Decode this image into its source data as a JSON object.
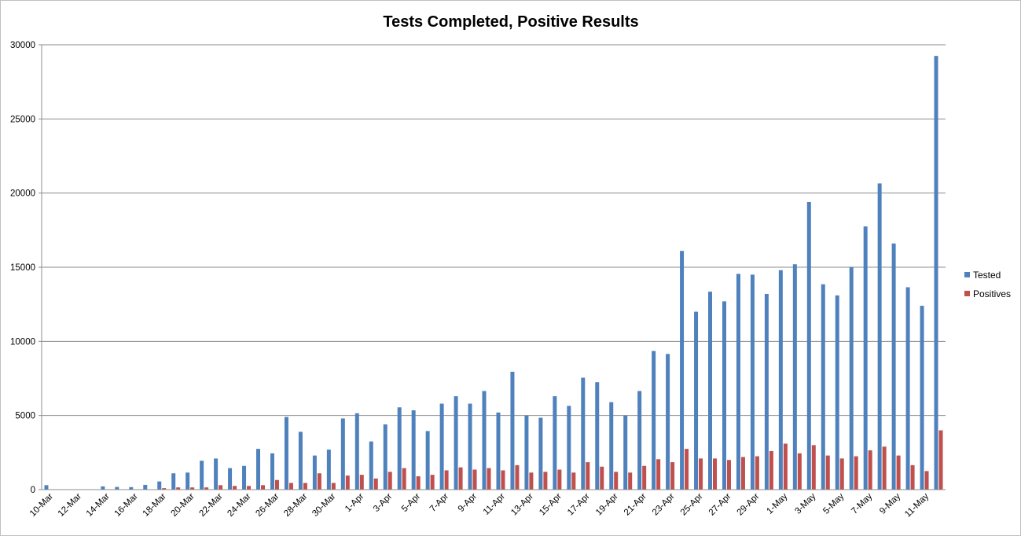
{
  "chart_data": {
    "type": "bar",
    "title": "Tests Completed, Positive Results",
    "xlabel": "",
    "ylabel": "",
    "ylim": [
      0,
      30000
    ],
    "y_ticks": [
      0,
      5000,
      10000,
      15000,
      20000,
      25000,
      30000
    ],
    "grid": "horizontal",
    "legend_position": "right",
    "categories": [
      "10-Mar",
      "11-Mar",
      "12-Mar",
      "13-Mar",
      "14-Mar",
      "15-Mar",
      "16-Mar",
      "17-Mar",
      "18-Mar",
      "19-Mar",
      "20-Mar",
      "21-Mar",
      "22-Mar",
      "23-Mar",
      "24-Mar",
      "25-Mar",
      "26-Mar",
      "27-Mar",
      "28-Mar",
      "29-Mar",
      "30-Mar",
      "31-Mar",
      "1-Apr",
      "2-Apr",
      "3-Apr",
      "4-Apr",
      "5-Apr",
      "6-Apr",
      "7-Apr",
      "8-Apr",
      "9-Apr",
      "10-Apr",
      "11-Apr",
      "12-Apr",
      "13-Apr",
      "14-Apr",
      "15-Apr",
      "16-Apr",
      "17-Apr",
      "18-Apr",
      "19-Apr",
      "20-Apr",
      "21-Apr",
      "22-Apr",
      "23-Apr",
      "24-Apr",
      "25-Apr",
      "26-Apr",
      "27-Apr",
      "28-Apr",
      "29-Apr",
      "30-Apr",
      "1-May",
      "2-May",
      "3-May",
      "4-May",
      "5-May",
      "6-May",
      "7-May",
      "8-May",
      "9-May",
      "10-May",
      "11-May",
      "12-May"
    ],
    "tick_labels": [
      "10-Mar",
      "",
      "12-Mar",
      "",
      "14-Mar",
      "",
      "16-Mar",
      "",
      "18-Mar",
      "",
      "20-Mar",
      "",
      "22-Mar",
      "",
      "24-Mar",
      "",
      "26-Mar",
      "",
      "28-Mar",
      "",
      "30-Mar",
      "",
      "1-Apr",
      "",
      "3-Apr",
      "",
      "5-Apr",
      "",
      "7-Apr",
      "",
      "9-Apr",
      "",
      "11-Apr",
      "",
      "13-Apr",
      "",
      "15-Apr",
      "",
      "17-Apr",
      "",
      "19-Apr",
      "",
      "21-Apr",
      "",
      "23-Apr",
      "",
      "25-Apr",
      "",
      "27-Apr",
      "",
      "29-Apr",
      "",
      "1-May",
      "",
      "3-May",
      "",
      "5-May",
      "",
      "7-May",
      "",
      "9-May",
      "",
      "11-May",
      ""
    ],
    "series": [
      {
        "name": "Tested",
        "color": "#4f81bd",
        "values": [
          300,
          0,
          0,
          0,
          220,
          180,
          170,
          320,
          550,
          1100,
          1150,
          1950,
          2100,
          1450,
          1600,
          2750,
          2450,
          4900,
          3900,
          2300,
          2700,
          4800,
          5150,
          3250,
          4400,
          5550,
          5350,
          3950,
          5800,
          6300,
          5800,
          6650,
          5200,
          7950,
          5000,
          4850,
          6300,
          5650,
          7550,
          7250,
          5900,
          5000,
          6650,
          9350,
          9150,
          16100,
          12000,
          13350,
          12700,
          14550,
          14500,
          13200,
          14800,
          15200,
          19400,
          13850,
          13100,
          15000,
          17750,
          20650,
          16600,
          13650,
          12400,
          29250
        ]
      },
      {
        "name": "Positives",
        "color": "#c0504d",
        "values": [
          0,
          0,
          0,
          0,
          0,
          0,
          0,
          0,
          100,
          150,
          150,
          150,
          300,
          250,
          250,
          300,
          650,
          450,
          450,
          1100,
          450,
          950,
          1000,
          750,
          1200,
          1450,
          900,
          1000,
          1300,
          1500,
          1350,
          1450,
          1300,
          1650,
          1150,
          1200,
          1350,
          1150,
          1850,
          1550,
          1200,
          1150,
          1600,
          2050,
          1850,
          2750,
          2100,
          2100,
          2000,
          2200,
          2250,
          2600,
          3100,
          2450,
          3000,
          2300,
          2100,
          2250,
          2650,
          2900,
          2300,
          1650,
          1250,
          4000
        ]
      }
    ]
  }
}
